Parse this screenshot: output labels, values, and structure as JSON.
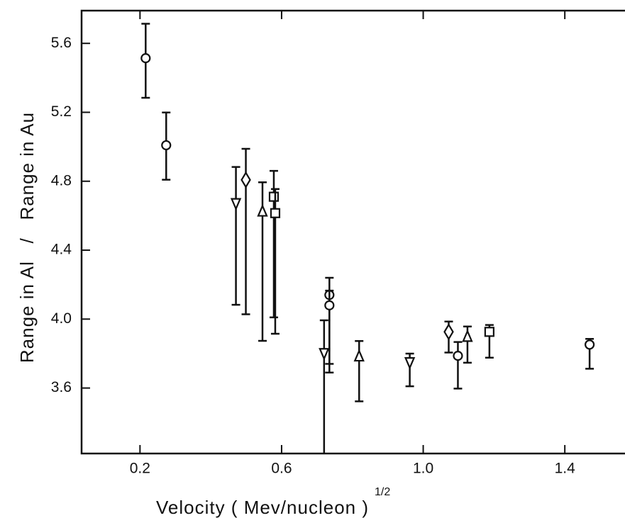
{
  "chart_data": {
    "type": "scatter",
    "xlabel": "Velocity ( Mev/nucleon )",
    "xlabel_exponent": "1/2",
    "ylabel": "Range in Al   /   Range in Au",
    "xlim": [
      0.035,
      1.57
    ],
    "ylim": [
      3.22,
      5.79
    ],
    "xticks": [
      0.2,
      0.6,
      {
        "value": 1,
        "label": "1.0"
      },
      1.4
    ],
    "yticks": [
      3.6,
      {
        "value": 4,
        "label": "4.0"
      },
      4.4,
      4.8,
      5.2,
      5.6
    ],
    "color": "#111111",
    "series": [
      {
        "marker": "circle",
        "x": [
          0.216,
          0.274,
          0.735,
          0.735,
          1.098,
          1.47
        ],
        "values": [
          5.514,
          5.009,
          4.14,
          4.08,
          3.787,
          3.852
        ],
        "err_plus": [
          0.2,
          0.19,
          0.1,
          0.085,
          0.08,
          0.033
        ],
        "err_minus": [
          0.23,
          0.2,
          0.45,
          0.34,
          0.19,
          0.14
        ]
      },
      {
        "marker": "triangle-down",
        "x": [
          0.471,
          0.72,
          0.962
        ],
        "values": [
          4.673,
          3.803,
          3.75
        ],
        "err_plus": [
          0.21,
          0.19,
          0.05
        ],
        "err_minus": [
          0.59,
          0.6,
          0.14
        ]
      },
      {
        "marker": "diamond",
        "x": [
          0.499,
          1.072
        ],
        "values": [
          4.808,
          3.926
        ],
        "err_plus": [
          0.18,
          0.06
        ],
        "err_minus": [
          0.78,
          0.12
        ]
      },
      {
        "marker": "triangle-up",
        "x": [
          0.546,
          0.819,
          1.125
        ],
        "values": [
          4.624,
          3.783,
          3.897
        ],
        "err_plus": [
          0.17,
          0.09,
          0.06
        ],
        "err_minus": [
          0.75,
          0.26,
          0.15
        ]
      },
      {
        "marker": "square",
        "x": [
          0.578,
          0.582,
          1.187
        ],
        "values": [
          4.71,
          4.615,
          3.926
        ],
        "err_plus": [
          0.15,
          0.14,
          0.04
        ],
        "err_minus": [
          0.7,
          0.7,
          0.15
        ]
      }
    ]
  }
}
